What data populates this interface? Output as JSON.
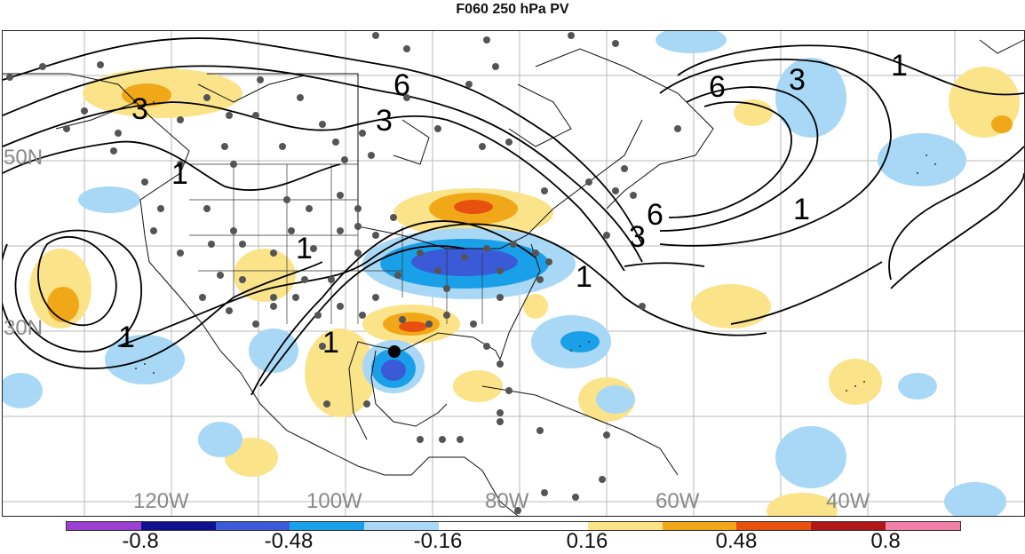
{
  "title": "F060 250 hPa PV",
  "lon_labels": [
    "120W",
    "100W",
    "80W",
    "60W",
    "40W"
  ],
  "lat_labels": [
    "50N",
    "30N"
  ],
  "contour_labels": [
    "3",
    "6",
    "3",
    "6",
    "3",
    "1",
    "1",
    "1",
    "1",
    "1",
    "1",
    "6",
    "3",
    "1"
  ],
  "colorbar": {
    "tick_labels": [
      "-0.8",
      "-0.48",
      "-0.16",
      "0.16",
      "0.48",
      "0.8"
    ],
    "colors": [
      "#9b40d0",
      "#101090",
      "#3a5ad8",
      "#1aa0e8",
      "#a8d8f5",
      "#ffffff",
      "#ffffff",
      "#fbe38a",
      "#f0a818",
      "#e85010",
      "#b01818",
      "#f080a8"
    ]
  },
  "storm_marker": "black-dot",
  "chart_data": {
    "type": "map",
    "title": "F060 250 hPa PV",
    "levels": [
      -0.8,
      -0.48,
      -0.16,
      0.16,
      0.48,
      0.8
    ],
    "contour_values": [
      1,
      3,
      6
    ]
  }
}
